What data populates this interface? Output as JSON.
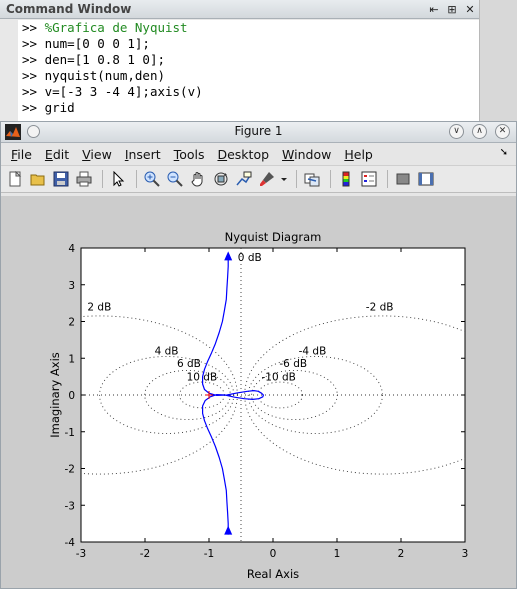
{
  "command_window": {
    "title": "Command Window",
    "lines": [
      {
        "prompt": ">>",
        "text": "%Grafica de Nyquist",
        "comment": true
      },
      {
        "prompt": ">>",
        "text": "num=[0 0 0 1];",
        "comment": false
      },
      {
        "prompt": ">>",
        "text": "den=[1 0.8 1 0];",
        "comment": false
      },
      {
        "prompt": ">>",
        "text": "nyquist(num,den)",
        "comment": false
      },
      {
        "prompt": ">>",
        "text": "v=[-3 3 -4 4];axis(v)",
        "comment": false
      },
      {
        "prompt": ">>",
        "text": "grid",
        "comment": false
      }
    ]
  },
  "figure": {
    "title": "Figure 1",
    "menu": [
      "File",
      "Edit",
      "View",
      "Insert",
      "Tools",
      "Desktop",
      "Window",
      "Help"
    ],
    "menu_mnemonics": [
      "F",
      "E",
      "V",
      "I",
      "T",
      "D",
      "W",
      "H"
    ],
    "toolbar_icons": [
      "new-figure-icon",
      "open-file-icon",
      "save-icon",
      "print-icon",
      "select-arrow-icon",
      "zoom-in-icon",
      "zoom-out-icon",
      "pan-hand-icon",
      "rotate-3d-icon",
      "data-cursor-icon",
      "brush-icon",
      "brush-dropdown-icon",
      "link-plot-icon",
      "colorbar-icon",
      "legend-icon",
      "hide-plot-tools-icon",
      "show-plot-tools-icon"
    ]
  },
  "chart_data": {
    "type": "line",
    "title": "Nyquist Diagram",
    "xlabel": "Real Axis",
    "ylabel": "Imaginary Axis",
    "xlim": [
      -3,
      3
    ],
    "ylim": [
      -4,
      4
    ],
    "xticks": [
      -3,
      -2,
      -1,
      0,
      1,
      2,
      3
    ],
    "yticks": [
      -4,
      -3,
      -2,
      -1,
      0,
      1,
      2,
      3,
      4
    ],
    "grid": true,
    "grid_labels": [
      "0 dB",
      "2 dB",
      "-2 dB",
      "4 dB",
      "-4 dB",
      "6 dB",
      "-6 dB",
      "10 dB",
      "-10 dB"
    ],
    "critical_point": [
      -1,
      0
    ],
    "series_color": "#0000ff",
    "series": [
      {
        "x": [
          -0.7,
          -0.7,
          -0.71,
          -0.72,
          -0.73,
          -0.76,
          -0.79,
          -0.84,
          -0.9,
          -0.96,
          -1.02,
          -1.07,
          -1.1,
          -1.1,
          -1.07,
          -1.0,
          -0.88,
          -0.72,
          -0.55,
          -0.4,
          -0.3,
          -0.23,
          -0.18,
          -0.15,
          -0.16,
          -0.22,
          -0.32,
          -0.45,
          -0.6,
          -0.75,
          -0.88,
          -0.98,
          -1.06,
          -1.1,
          -1.1,
          -1.07,
          -1.02,
          -0.96,
          -0.9,
          -0.84,
          -0.79,
          -0.76,
          -0.73,
          -0.72,
          -0.71,
          -0.7,
          -0.7
        ],
        "y": [
          3.8,
          3.5,
          3.2,
          2.9,
          2.6,
          2.3,
          2.0,
          1.7,
          1.4,
          1.15,
          0.92,
          0.7,
          0.5,
          0.3,
          0.15,
          0.05,
          -0.01,
          0.0,
          0.06,
          0.1,
          0.12,
          0.1,
          0.05,
          0.0,
          -0.05,
          -0.1,
          -0.12,
          -0.1,
          -0.06,
          0.0,
          0.01,
          -0.05,
          -0.15,
          -0.3,
          -0.5,
          -0.7,
          -0.92,
          -1.15,
          -1.4,
          -1.7,
          -2.0,
          -2.3,
          -2.6,
          -2.9,
          -3.2,
          -3.5,
          -3.8
        ]
      }
    ]
  }
}
